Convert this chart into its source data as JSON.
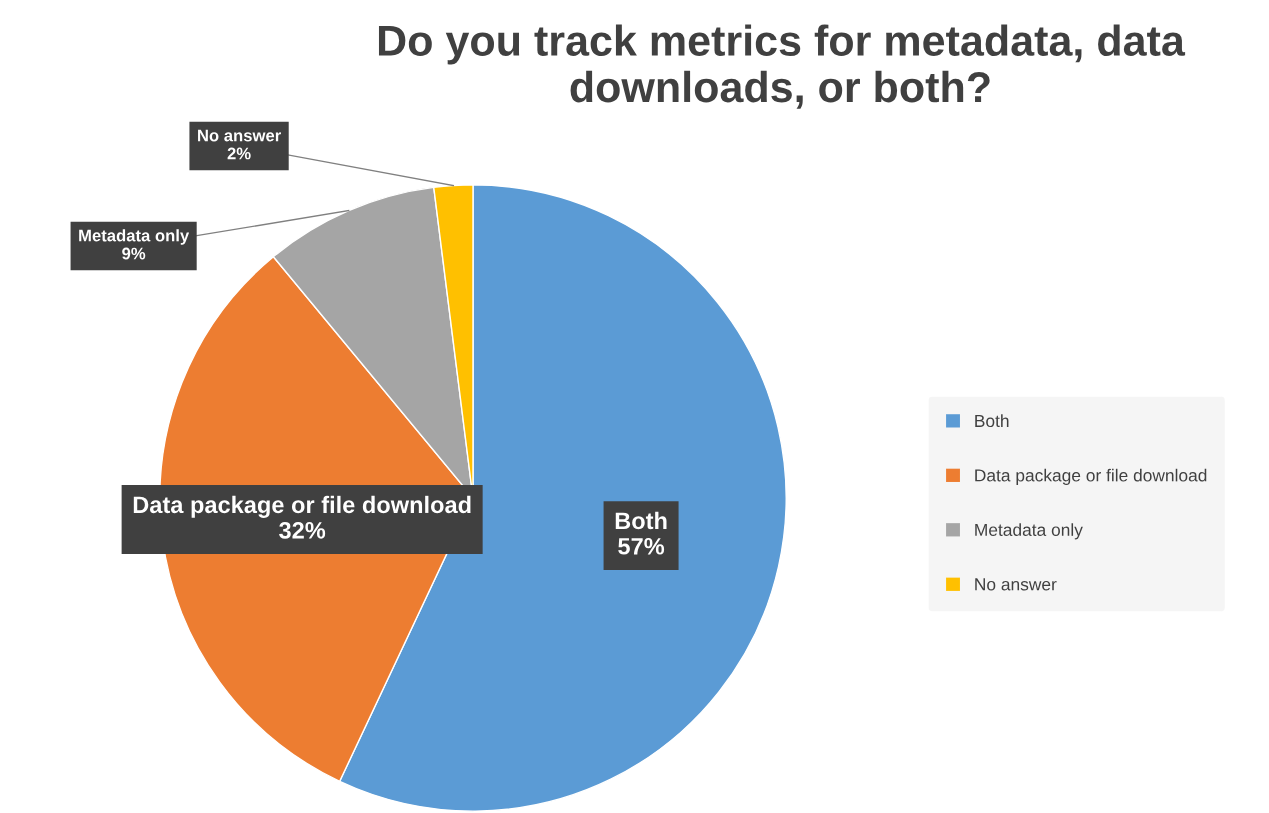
{
  "chart_data": {
    "type": "pie",
    "title": "Do you track metrics for metadata, data downloads, or both?",
    "categories": [
      "Both",
      "Data package or file download",
      "Metadata only",
      "No answer"
    ],
    "values": [
      57,
      32,
      9,
      2
    ],
    "value_labels": [
      "57%",
      "32%",
      "9%",
      "2%"
    ],
    "colors": [
      "#5b9bd5",
      "#ed7d31",
      "#a5a5a5",
      "#ffc000"
    ],
    "legend": "right"
  }
}
